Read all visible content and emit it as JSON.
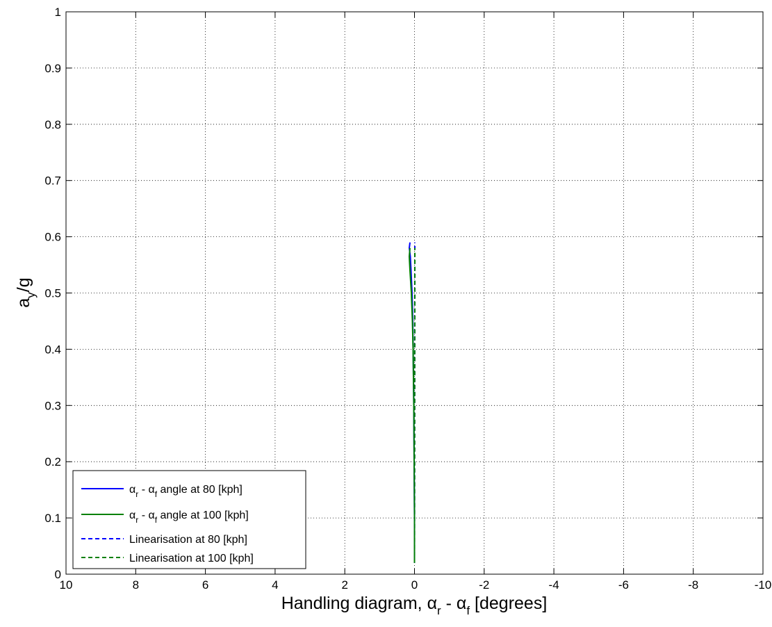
{
  "chart_data": {
    "type": "line",
    "xlabel": {
      "prefix": "Handling diagram, ",
      "sym1": "α",
      "sub1": "r",
      "mid": " - ",
      "sym2": "α",
      "sub2": "f",
      "suffix": " [degrees]"
    },
    "ylabel": {
      "base": "a",
      "sub": "y",
      "suffix": "/g"
    },
    "xlim": [
      10,
      -10
    ],
    "ylim": [
      0,
      1
    ],
    "x_reversed": true,
    "grid": true,
    "legend_position": "bottom-left",
    "x_ticks": [
      "10",
      "8",
      "6",
      "4",
      "2",
      "0",
      "-2",
      "-4",
      "-6",
      "-8",
      "-10"
    ],
    "y_ticks": [
      "0",
      "0.1",
      "0.2",
      "0.3",
      "0.4",
      "0.5",
      "0.6",
      "0.7",
      "0.8",
      "0.9",
      "1"
    ],
    "series": [
      {
        "legend": {
          "sym1": "α",
          "sub1": "r",
          "mid": " - ",
          "sym2": "α",
          "sub2": "f",
          "rest": " angle at 80  [kph]"
        },
        "color": "#0000ff",
        "dash": "solid",
        "x": [
          0.0,
          0.0,
          0.01,
          0.02,
          0.03,
          0.04,
          0.05,
          0.07,
          0.1,
          0.12,
          0.15,
          0.13
        ],
        "y": [
          0.02,
          0.1,
          0.2,
          0.3,
          0.35,
          0.4,
          0.45,
          0.5,
          0.54,
          0.565,
          0.58,
          0.59
        ]
      },
      {
        "legend": {
          "sym1": "α",
          "sub1": "r",
          "mid": " - ",
          "sym2": "α",
          "sub2": "f",
          "rest": " angle at 100  [kph]"
        },
        "color": "#008000",
        "dash": "solid",
        "x": [
          0.0,
          0.0,
          0.01,
          0.02,
          0.03,
          0.04,
          0.06,
          0.09,
          0.13,
          0.15,
          0.13
        ],
        "y": [
          0.02,
          0.1,
          0.2,
          0.3,
          0.35,
          0.4,
          0.45,
          0.5,
          0.54,
          0.565,
          0.58
        ]
      },
      {
        "legend": {
          "rest": "Linearisation at 80  [kph]"
        },
        "color": "#0000ff",
        "dash": "dashed",
        "x": [
          0.0,
          -0.01
        ],
        "y": [
          0.02,
          0.59
        ]
      },
      {
        "legend": {
          "rest": "Linearisation at 100  [kph]"
        },
        "color": "#008000",
        "dash": "dashed",
        "x": [
          0.0,
          -0.01
        ],
        "y": [
          0.02,
          0.58
        ]
      }
    ]
  }
}
